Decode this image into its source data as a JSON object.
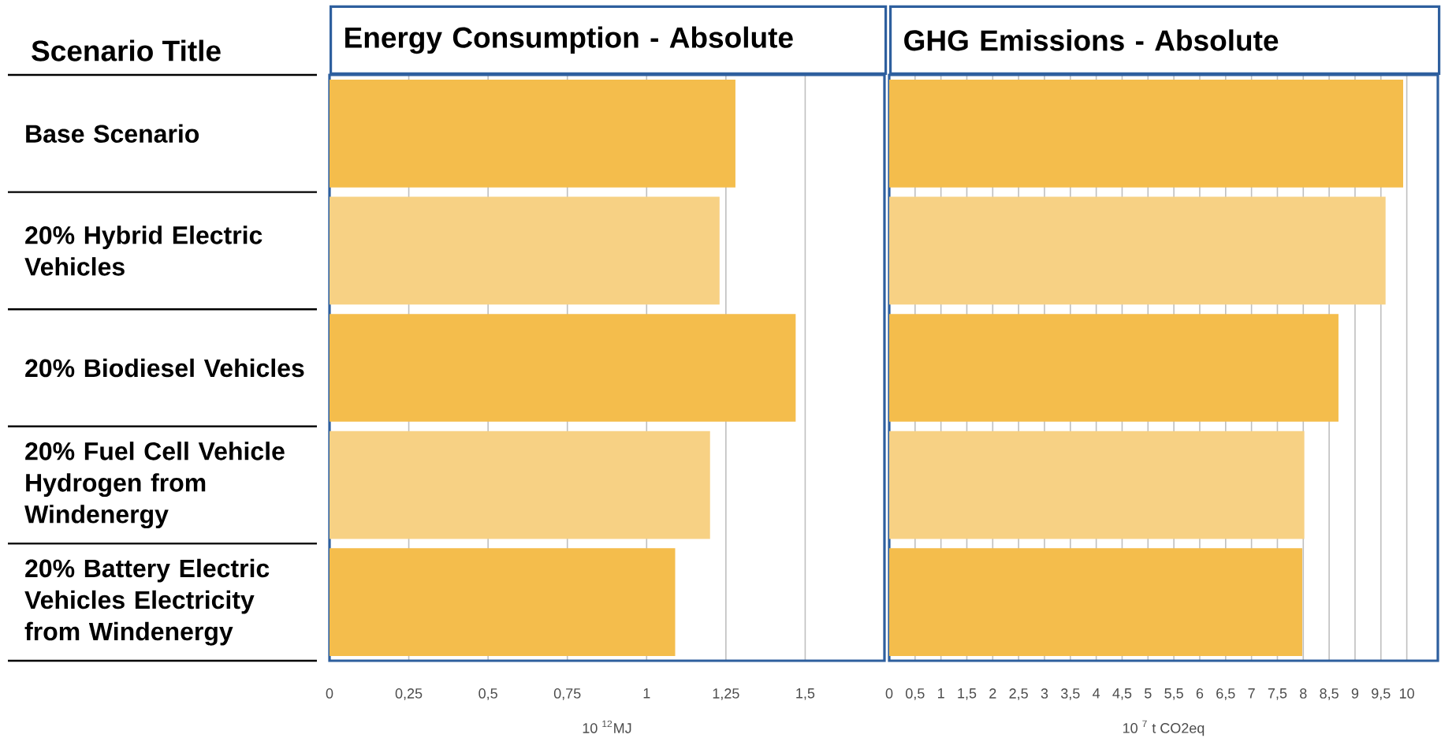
{
  "chart_data": [
    {
      "type": "bar",
      "orientation": "horizontal",
      "title": "Energy Consumption - Absolute",
      "ylabel": "Scenario Title",
      "xlabel": "10 $^{12}$MJ",
      "categories": [
        "Base Scenario",
        "20% Hybrid Electric Vehicles",
        "20% Biodiesel Vehicles",
        "20% Fuel Cell Vehicle Hydrogen from Windenergy",
        "20% Battery Electric Vehicles Electricity from Windenergy"
      ],
      "values": [
        1.28,
        1.23,
        1.47,
        1.2,
        1.09
      ],
      "colors": [
        "#f4bd4c",
        "#f7d184",
        "#f4bd4c",
        "#f7d184",
        "#f4bd4c"
      ],
      "xlim": [
        0,
        1.75
      ],
      "xticks": [
        0,
        {
          "value": 0.25,
          "label": "0,25"
        },
        {
          "value": 0.5,
          "label": "0,5"
        },
        {
          "value": 0.75,
          "label": "0,75"
        },
        1,
        {
          "value": 1.25,
          "label": "1,25"
        },
        {
          "value": 1.5,
          "label": "1,5"
        }
      ],
      "grid": "x"
    },
    {
      "type": "bar",
      "orientation": "horizontal",
      "title": "GHG Emissions - Absolute",
      "xlabel": "10 $^{7}$ t CO2eq",
      "categories": [
        null,
        null,
        null,
        null,
        null
      ],
      "values": [
        9.93,
        9.59,
        8.68,
        8.02,
        7.98
      ],
      "colors": [
        "#f4bd4c",
        "#f7d184",
        "#f4bd4c",
        "#f7d184",
        "#f4bd4c"
      ],
      "xlim": [
        0,
        10.6
      ],
      "xticks": [
        0,
        {
          "value": 0.5,
          "label": "0,5"
        },
        1,
        {
          "value": 1.5,
          "label": "1,5"
        },
        2,
        {
          "value": 2.5,
          "label": "2,5"
        },
        3,
        {
          "value": 3.5,
          "label": "3,5"
        },
        4,
        {
          "value": 4.5,
          "label": "4,5"
        },
        5,
        {
          "value": 5.5,
          "label": "5,5"
        },
        6,
        {
          "value": 6.5,
          "label": "6,5"
        },
        7,
        {
          "value": 7.5,
          "label": "7,5"
        },
        8,
        {
          "value": 8.5,
          "label": "8,5"
        },
        9,
        {
          "value": 9.5,
          "label": "9,5"
        },
        10
      ],
      "grid": "x",
      "tick_labels": "x"
    }
  ]
}
